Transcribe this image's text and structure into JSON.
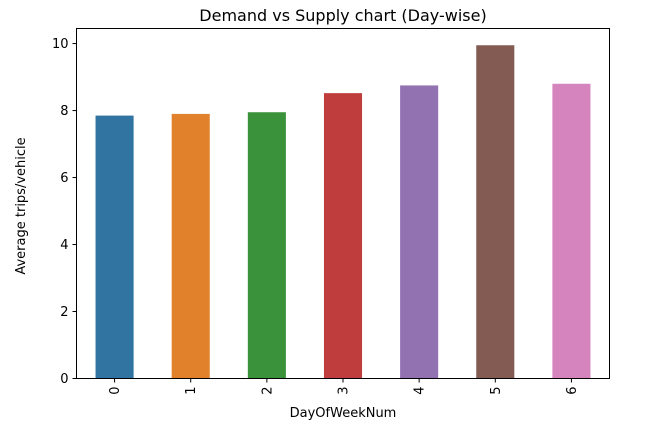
{
  "chart_data": {
    "type": "bar",
    "title": "Demand vs Supply chart (Day-wise)",
    "xlabel": "DayOfWeekNum",
    "ylabel": "Average trips/vehicle",
    "categories": [
      "0",
      "1",
      "2",
      "3",
      "4",
      "5",
      "6"
    ],
    "values": [
      7.85,
      7.9,
      7.95,
      8.52,
      8.75,
      9.95,
      8.8
    ],
    "colors": [
      "#3274a1",
      "#e1812c",
      "#3a923a",
      "#c03d3e",
      "#9372b2",
      "#845b53",
      "#d684bd"
    ],
    "ylim": [
      0,
      10.45
    ],
    "yticks": [
      0,
      2,
      4,
      6,
      8,
      10
    ],
    "ytick_labels": [
      "0",
      "2",
      "4",
      "6",
      "8",
      "10"
    ],
    "xtick_rotation": "vertical",
    "grid": false,
    "legend": "none"
  }
}
